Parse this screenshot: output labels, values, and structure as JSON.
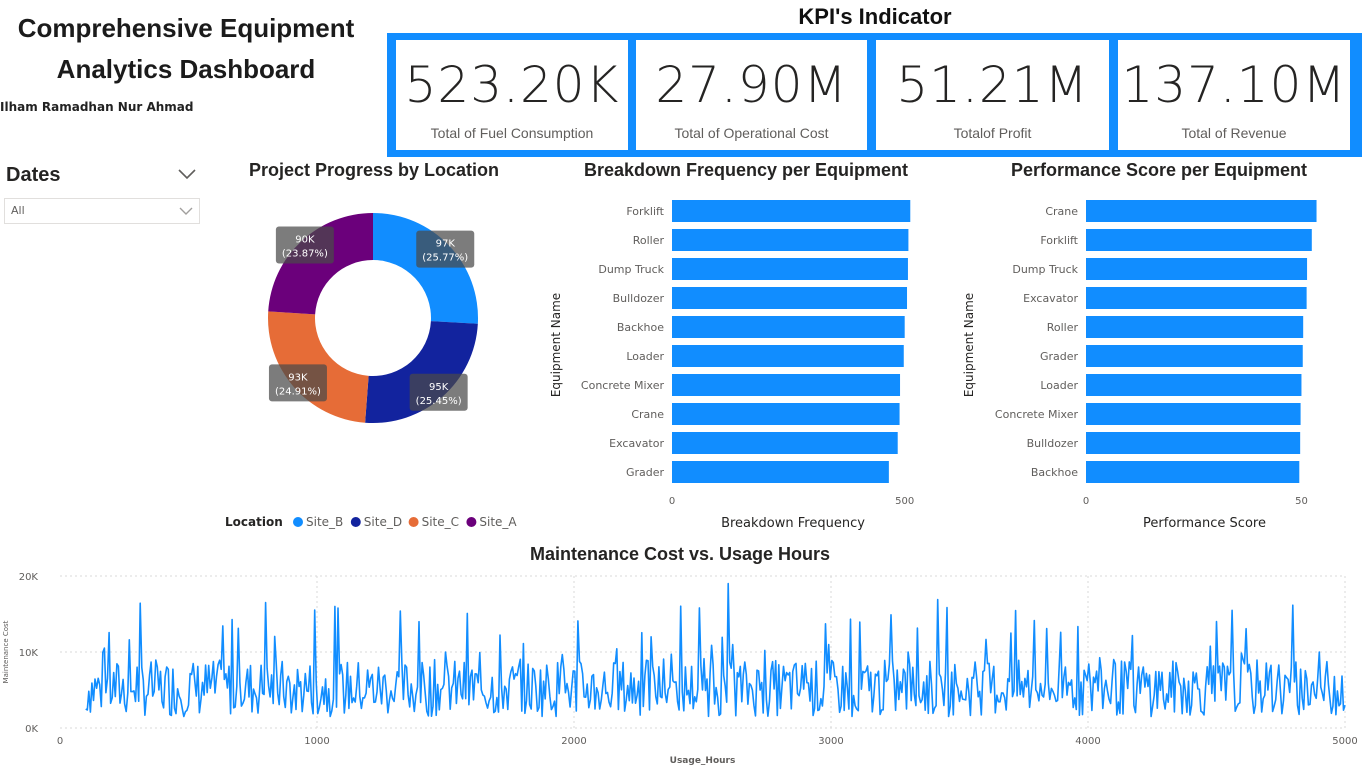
{
  "header": {
    "title_line1": "Comprehensive Equipment",
    "title_line2": "Analytics Dashboard",
    "author": "Ilham Ramadhan Nur Ahmad",
    "kpi_heading": "KPI's Indicator"
  },
  "kpis": [
    {
      "value": "523.20K",
      "label": "Total of Fuel Consumption"
    },
    {
      "value": "27.90M",
      "label": "Total of Operational Cost"
    },
    {
      "value": "51.21M",
      "label": "Totalof Profit"
    },
    {
      "value": "137.10M",
      "label": "Total of Revenue"
    }
  ],
  "slicer": {
    "label": "Dates",
    "value": "All",
    "icon": "chevron-down-icon"
  },
  "colors": {
    "accent": "#118dff",
    "site_b": "#118dff",
    "site_d": "#12239e",
    "site_c": "#e66c37",
    "site_a": "#6b007b"
  },
  "chart_data": [
    {
      "type": "pie",
      "title": "Project Progress by Location",
      "legend_title": "Location",
      "legend_position": "bottom",
      "slices": [
        {
          "name": "Site_B",
          "value": 97,
          "label": "97K",
          "percent_label": "(25.77%)",
          "color": "#118dff"
        },
        {
          "name": "Site_D",
          "value": 95,
          "label": "95K",
          "percent_label": "(25.45%)",
          "color": "#12239e"
        },
        {
          "name": "Site_C",
          "value": 93,
          "label": "93K",
          "percent_label": "(24.91%)",
          "color": "#e66c37"
        },
        {
          "name": "Site_A",
          "value": 90,
          "label": "90K",
          "percent_label": "(23.87%)",
          "color": "#6b007b"
        }
      ]
    },
    {
      "type": "bar",
      "orientation": "horizontal",
      "title": "Breakdown Frequency per Equipment",
      "xlabel": "Breakdown Frequency",
      "ylabel": "Equipment Name",
      "categories": [
        "Forklift",
        "Roller",
        "Dump Truck",
        "Bulldozer",
        "Backhoe",
        "Loader",
        "Concrete Mixer",
        "Crane",
        "Excavator",
        "Grader"
      ],
      "values": [
        512,
        508,
        507,
        505,
        500,
        498,
        490,
        489,
        485,
        466
      ],
      "xlim": [
        0,
        520
      ],
      "xticks": [
        "0",
        "500"
      ],
      "xtick_values": [
        0,
        500
      ]
    },
    {
      "type": "bar",
      "orientation": "horizontal",
      "title": "Performance Score per Equipment",
      "xlabel": "Performance Score",
      "ylabel": "Equipment Name",
      "categories": [
        "Crane",
        "Forklift",
        "Dump Truck",
        "Excavator",
        "Roller",
        "Grader",
        "Loader",
        "Concrete Mixer",
        "Bulldozer",
        "Backhoe"
      ],
      "values": [
        53.5,
        52.4,
        51.3,
        51.2,
        50.4,
        50.3,
        50.0,
        49.8,
        49.7,
        49.5
      ],
      "xlim": [
        0,
        55
      ],
      "xticks": [
        "0",
        "50"
      ],
      "xtick_values": [
        0,
        50
      ]
    },
    {
      "type": "line",
      "title": "Maintenance Cost vs. Usage Hours",
      "xlabel": "Usage_Hours",
      "ylabel": "Maintenance Cost",
      "xlim": [
        0,
        5000
      ],
      "ylim": [
        0,
        20000
      ],
      "xticks": [
        "0",
        "1000",
        "2000",
        "3000",
        "4000",
        "5000"
      ],
      "xtick_values": [
        0,
        1000,
        2000,
        3000,
        4000,
        5000
      ],
      "yticks": [
        "0K",
        "10K",
        "20K"
      ],
      "ytick_values": [
        0,
        10000,
        20000
      ],
      "grid": true,
      "series": [
        {
          "color": "#118dff",
          "x": [
            100,
            300,
            500,
            700,
            800,
            900,
            1100,
            1300,
            1500,
            1700,
            1900,
            2100,
            2300,
            2500,
            2600,
            2700,
            2900,
            3100,
            3300,
            3500,
            3700,
            3900,
            4100,
            4300,
            4500,
            4700,
            4900,
            5000
          ],
          "y": [
            2500,
            8000,
            3000,
            6000,
            16500,
            2000,
            7000,
            3500,
            10000,
            4000,
            6500,
            2500,
            12000,
            5000,
            19000,
            3000,
            8500,
            2500,
            10000,
            3500,
            12500,
            4000,
            9000,
            2500,
            14000,
            5000,
            10000,
            3000
          ]
        }
      ]
    }
  ]
}
